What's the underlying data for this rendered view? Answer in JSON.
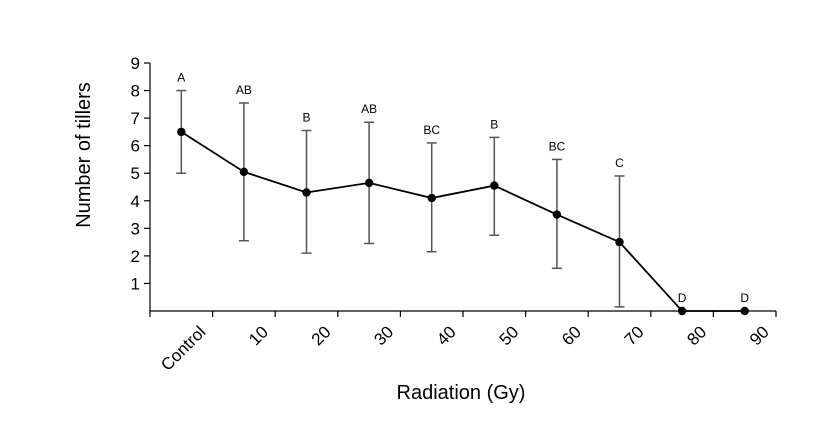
{
  "chart_data": {
    "type": "line",
    "title": "",
    "xlabel": "Radiation (Gy)",
    "ylabel": "Number of tillers",
    "ylim": [
      0,
      9
    ],
    "y_ticks": [
      "1",
      "2",
      "3",
      "4",
      "5",
      "6",
      "7",
      "8",
      "9"
    ],
    "categories": [
      "Control",
      "10",
      "20",
      "30",
      "40",
      "50",
      "60",
      "70",
      "80",
      "90"
    ],
    "series": [
      {
        "values": [
          6.5,
          5.05,
          4.3,
          4.65,
          4.1,
          4.55,
          3.5,
          2.5,
          0,
          0
        ],
        "error_upper": [
          8.0,
          7.55,
          6.55,
          6.85,
          6.1,
          6.3,
          5.5,
          4.9,
          null,
          null
        ],
        "error_lower": [
          5.0,
          2.55,
          2.1,
          2.45,
          2.15,
          2.75,
          1.55,
          0.15,
          null,
          null
        ],
        "significance_labels": [
          "A",
          "AB",
          "B",
          "AB",
          "BC",
          "B",
          "BC",
          "C",
          "D",
          "D"
        ]
      }
    ],
    "grid": false,
    "legend": "none",
    "colors": {
      "line": "#000000",
      "marker": "#000000",
      "error_bar": "#555555",
      "axis": "#000000"
    }
  }
}
